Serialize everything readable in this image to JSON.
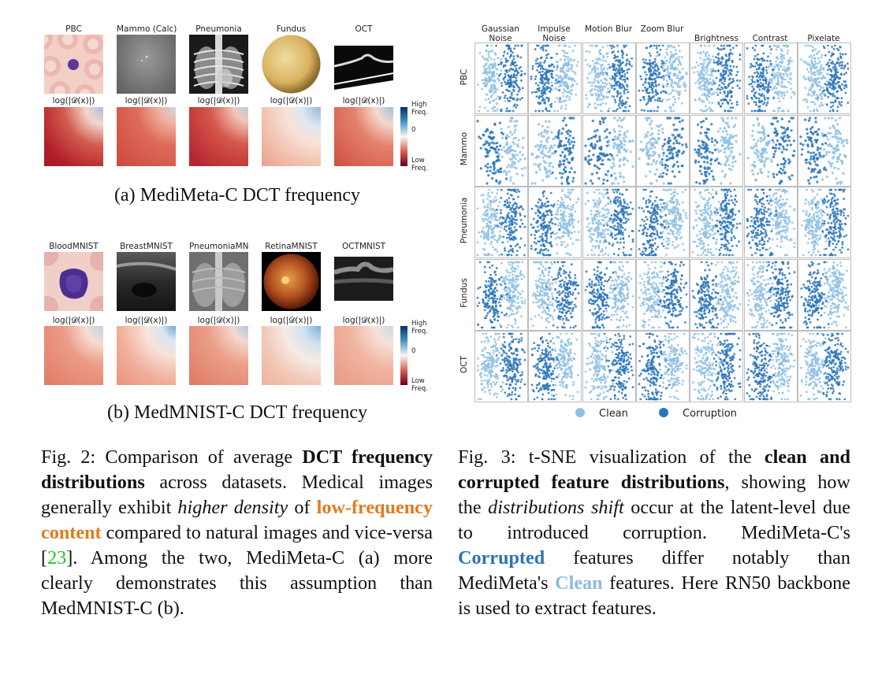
{
  "fig2a": {
    "datasets": [
      "PBC",
      "Mammo (Calc)",
      "Pneumonia",
      "Fundus",
      "OCT"
    ],
    "freq_label": "log(|𝓓(x)|)",
    "colorbar": {
      "high": "High Freq.",
      "zero": "0",
      "low": "Low Freq."
    },
    "subcaption": "(a) MediMeta-C DCT frequency"
  },
  "fig2b": {
    "datasets": [
      "BloodMNIST",
      "BreastMNIST",
      "PneumoniaMN",
      "RetinaMNIST",
      "OCTMNIST"
    ],
    "freq_label": "log(|𝓓(x)|)",
    "colorbar": {
      "high": "High Freq.",
      "zero": "0",
      "low": "Low Freq."
    },
    "subcaption": "(b) MedMNIST-C DCT frequency"
  },
  "fig2_caption": {
    "prefix": "Fig. 2: Comparison of average ",
    "bold1": "DCT frequency distributions",
    "mid1": " across datasets. Medical images generally exhibit ",
    "italic1": "higher density",
    "mid2": " of ",
    "orange1": "low-frequency content",
    "mid3": " compared to natural images and vice-versa [",
    "ref": "23",
    "suffix": "]. Among the two, MediMeta-C (a) more clearly demonstrates this assumption than MedMNIST-C (b)."
  },
  "fig3": {
    "columns": [
      "Gaussian Noise",
      "Impulse Noise",
      "Motion Blur",
      "Zoom Blur",
      "Brightness",
      "Contrast",
      "Pixelate"
    ],
    "rows": [
      "PBC",
      "Mammo",
      "Pneumonia",
      "Fundus",
      "OCT"
    ],
    "legend": {
      "clean": "Clean",
      "corruption": "Corruption"
    },
    "colors": {
      "clean": "#8fbfe3",
      "corruption": "#2a74b8"
    }
  },
  "fig3_caption": {
    "prefix": "Fig. 3: t-SNE visualization of the ",
    "bold1": "clean and corrupted feature distributions",
    "mid1": ", showing how the ",
    "italic1": "distributions shift",
    "mid2": " occur at the latent-level due to introduced corruption. MediMeta-C's ",
    "corrupted": "Corrupted",
    "mid3": " features differ notably than MediMeta's ",
    "clean": "Clean",
    "suffix": " features. Here RN50 backbone is used to extract features."
  }
}
